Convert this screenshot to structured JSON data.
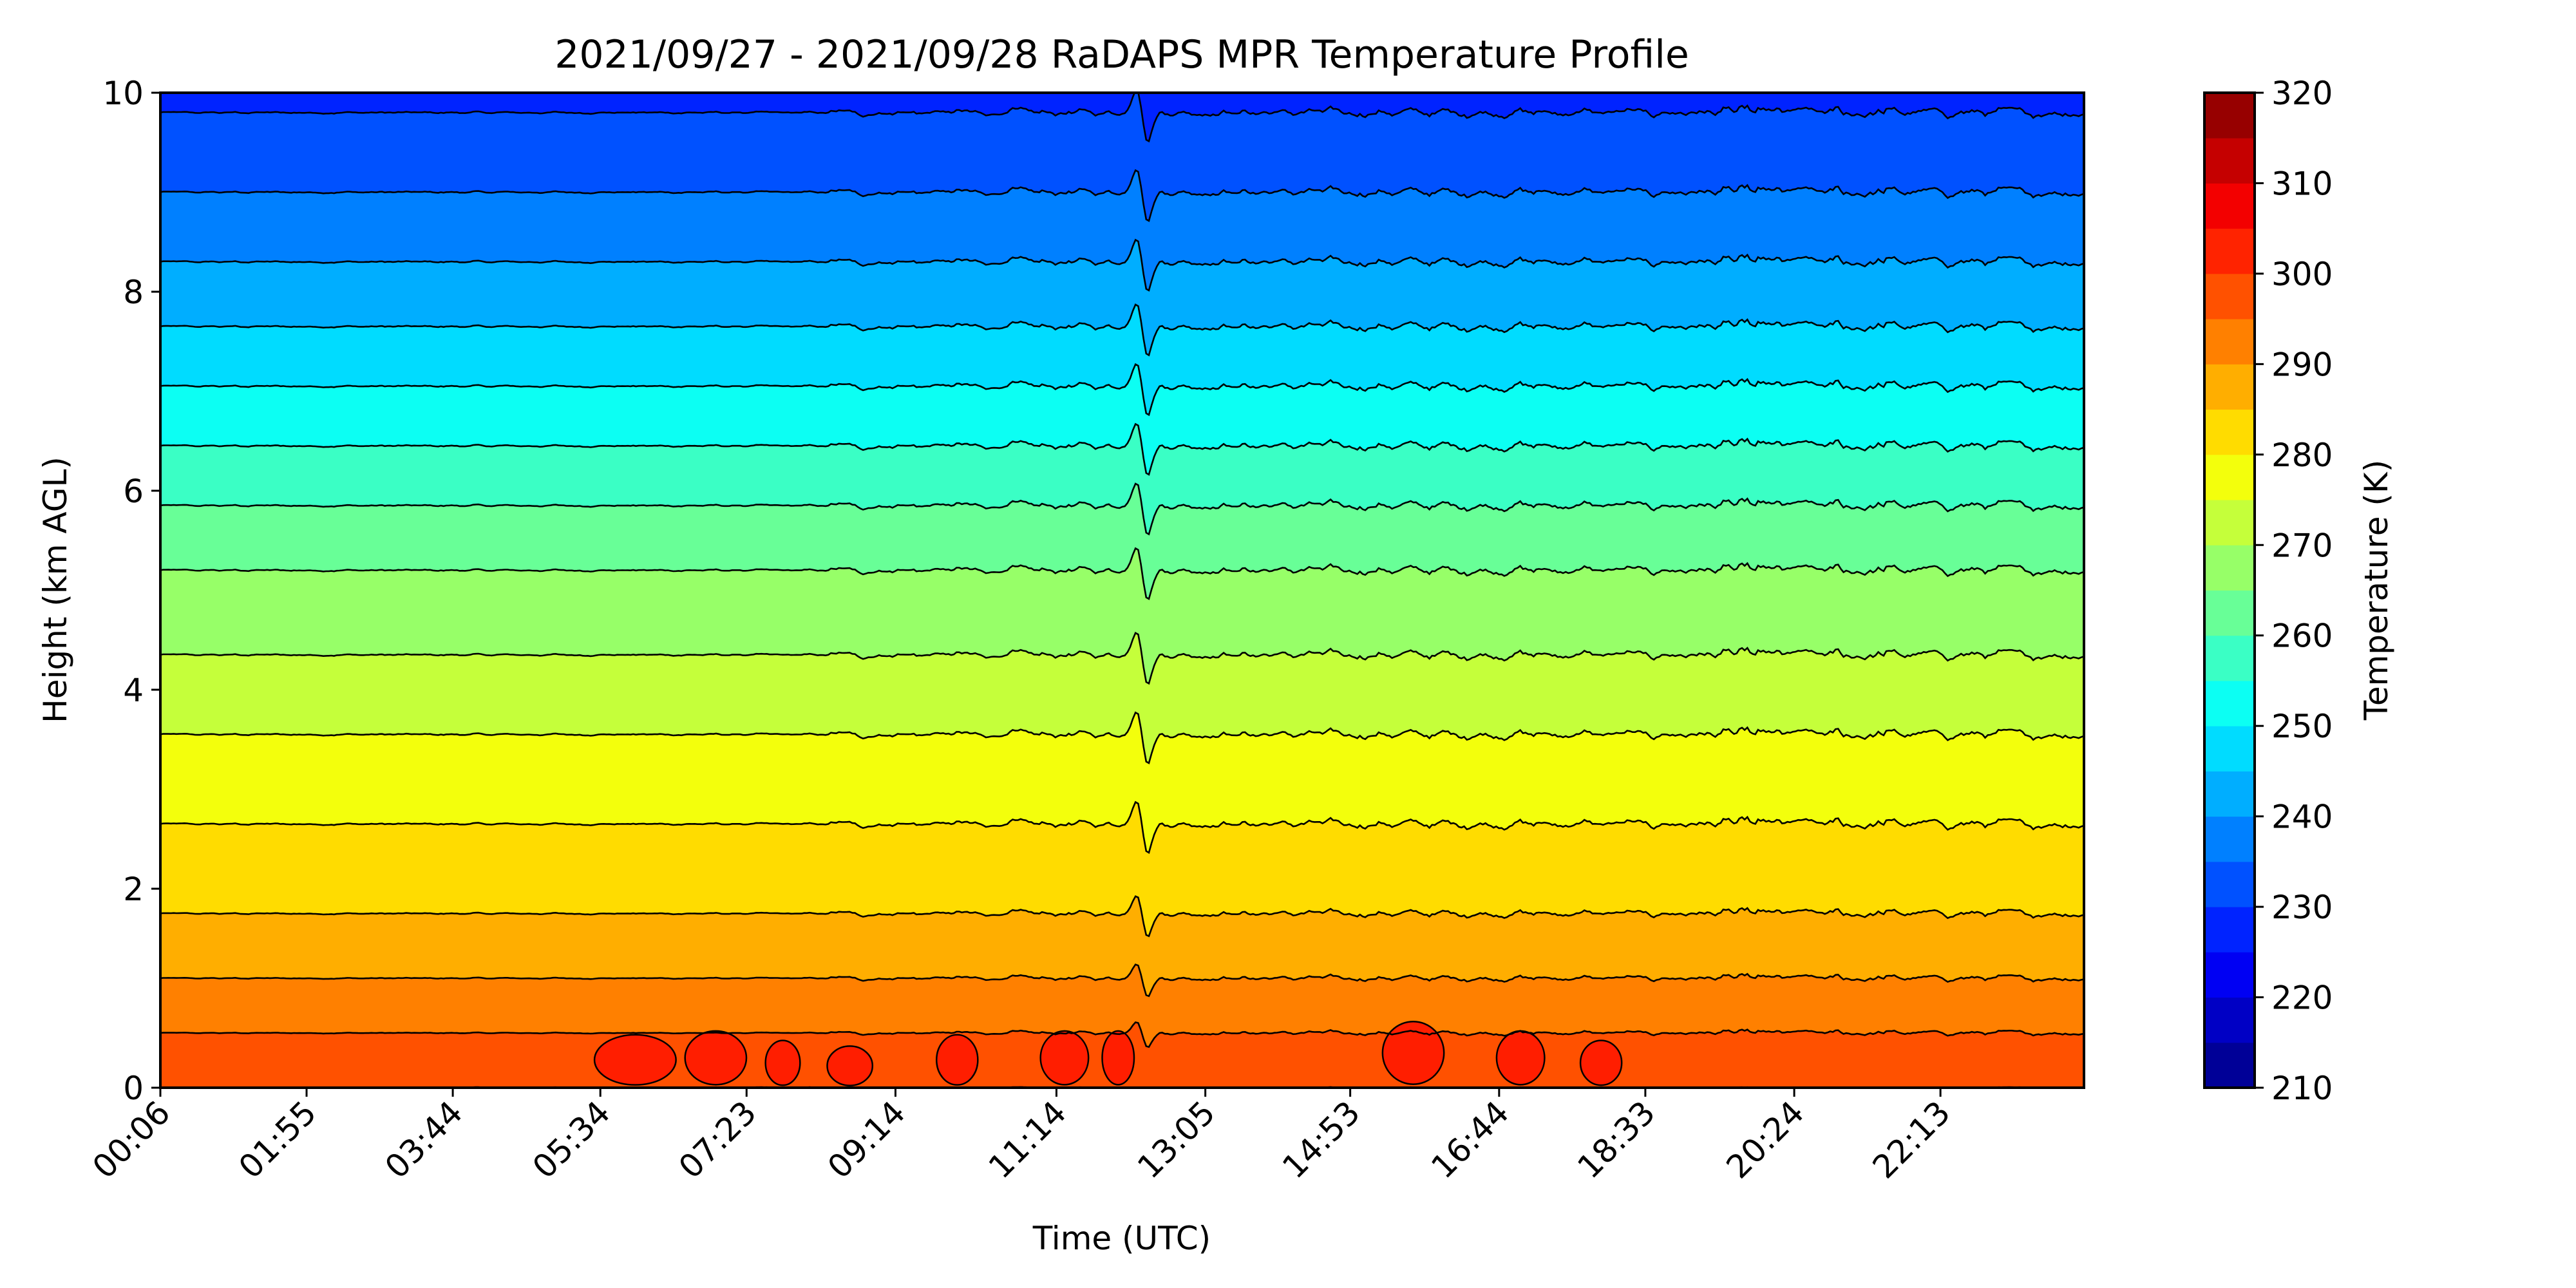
{
  "chart_data": {
    "type": "heatmap",
    "subtype": "filled-contour",
    "title": "2021/09/27 - 2021/09/28 RaDAPS MPR Temperature Profile",
    "xlabel": "Time (UTC)",
    "ylabel": "Height (km AGL)",
    "x_tick_labels": [
      "00:06",
      "01:55",
      "03:44",
      "05:34",
      "07:23",
      "09:14",
      "11:14",
      "13:05",
      "14:53",
      "16:44",
      "18:33",
      "20:24",
      "22:13"
    ],
    "x_tick_minutes": [
      6,
      115,
      224,
      334,
      443,
      554,
      674,
      785,
      893,
      1004,
      1113,
      1224,
      1333
    ],
    "x_range_minutes": [
      6,
      1440
    ],
    "y_ticks": [
      0,
      2,
      4,
      6,
      8,
      10
    ],
    "ylim": [
      0,
      10
    ],
    "colorbar": {
      "label": "Temperature (K)",
      "ticks": [
        210,
        220,
        230,
        240,
        250,
        260,
        270,
        280,
        290,
        300,
        310,
        320
      ],
      "range": [
        210,
        320
      ],
      "levels": [
        210,
        215,
        220,
        225,
        230,
        235,
        240,
        245,
        250,
        255,
        260,
        265,
        270,
        275,
        280,
        285,
        290,
        295,
        300,
        305,
        310,
        315,
        320
      ],
      "colormap": "jet"
    },
    "contour_baseline_heights_km": [
      0.02,
      0.55,
      1.1,
      1.75,
      2.65,
      3.55,
      4.35,
      5.2,
      5.85,
      6.45,
      7.05,
      7.65,
      8.3,
      9.0,
      9.8
    ],
    "contour_levels_K": [
      300,
      295,
      290,
      285,
      280,
      275,
      270,
      265,
      260,
      255,
      250,
      245,
      240,
      235,
      230
    ],
    "surface_temperature_K": 301,
    "lapse_rate_K_per_km": 7.1,
    "grid": false,
    "legend": "none"
  }
}
